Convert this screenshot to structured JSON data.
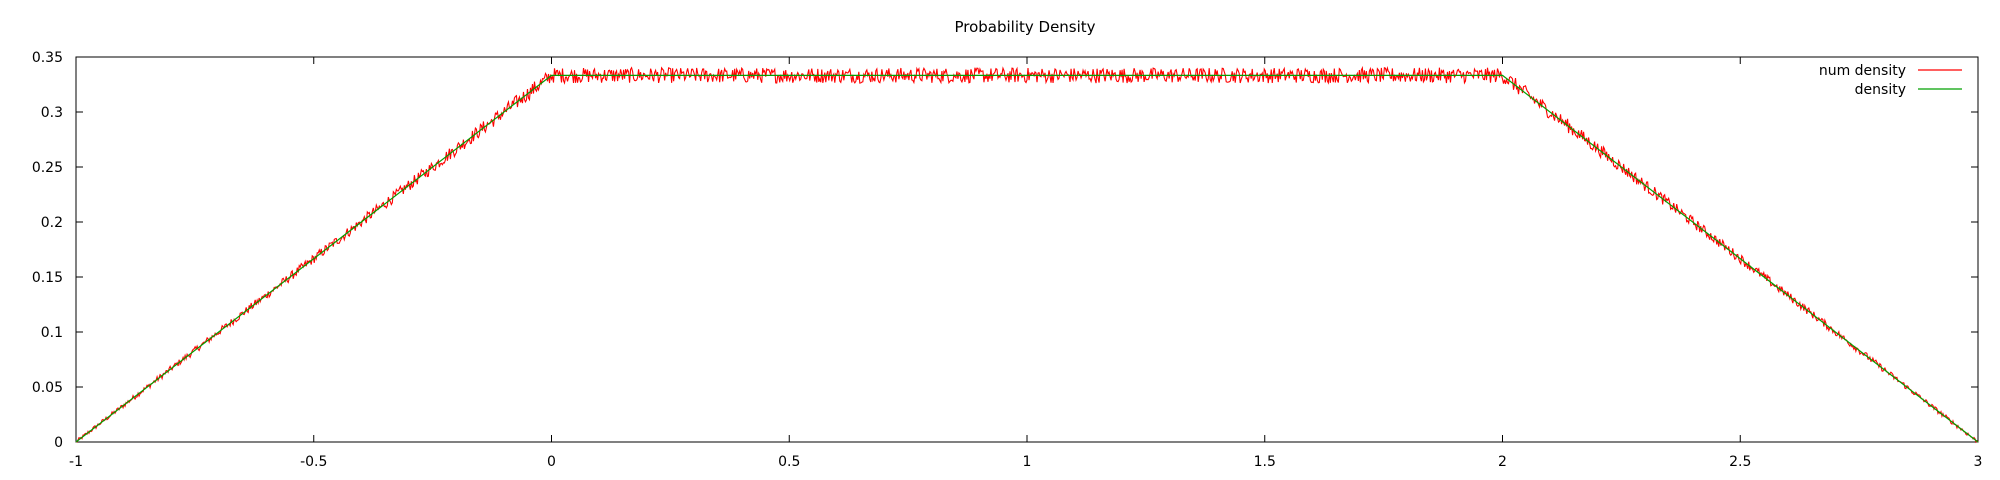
{
  "chart_data": {
    "type": "line",
    "title": "Probability Density",
    "xlabel": "",
    "ylabel": "",
    "xlim": [
      -1,
      3
    ],
    "ylim": [
      0,
      0.35
    ],
    "x_ticks": [
      "-1",
      "-0.5",
      "0",
      "0.5",
      "1",
      "1.5",
      "2",
      "2.5",
      "3"
    ],
    "y_ticks": [
      "0",
      "0.05",
      "0.1",
      "0.15",
      "0.2",
      "0.25",
      "0.3",
      "0.35"
    ],
    "grid": false,
    "legend_position": "top-right",
    "series": [
      {
        "name": "num density",
        "color": "#ff0000",
        "style": "noisy numerical estimate",
        "x": [
          -1,
          -0.5,
          0,
          0.5,
          1,
          1.5,
          2,
          2.5,
          3
        ],
        "values": [
          0,
          0.1667,
          0.3333,
          0.3333,
          0.3333,
          0.3333,
          0.3333,
          0.1667,
          0
        ]
      },
      {
        "name": "density",
        "color": "#00a000",
        "style": "exact",
        "x": [
          -1,
          0,
          2,
          3
        ],
        "values": [
          0,
          0.3333,
          0.3333,
          0
        ]
      }
    ]
  }
}
